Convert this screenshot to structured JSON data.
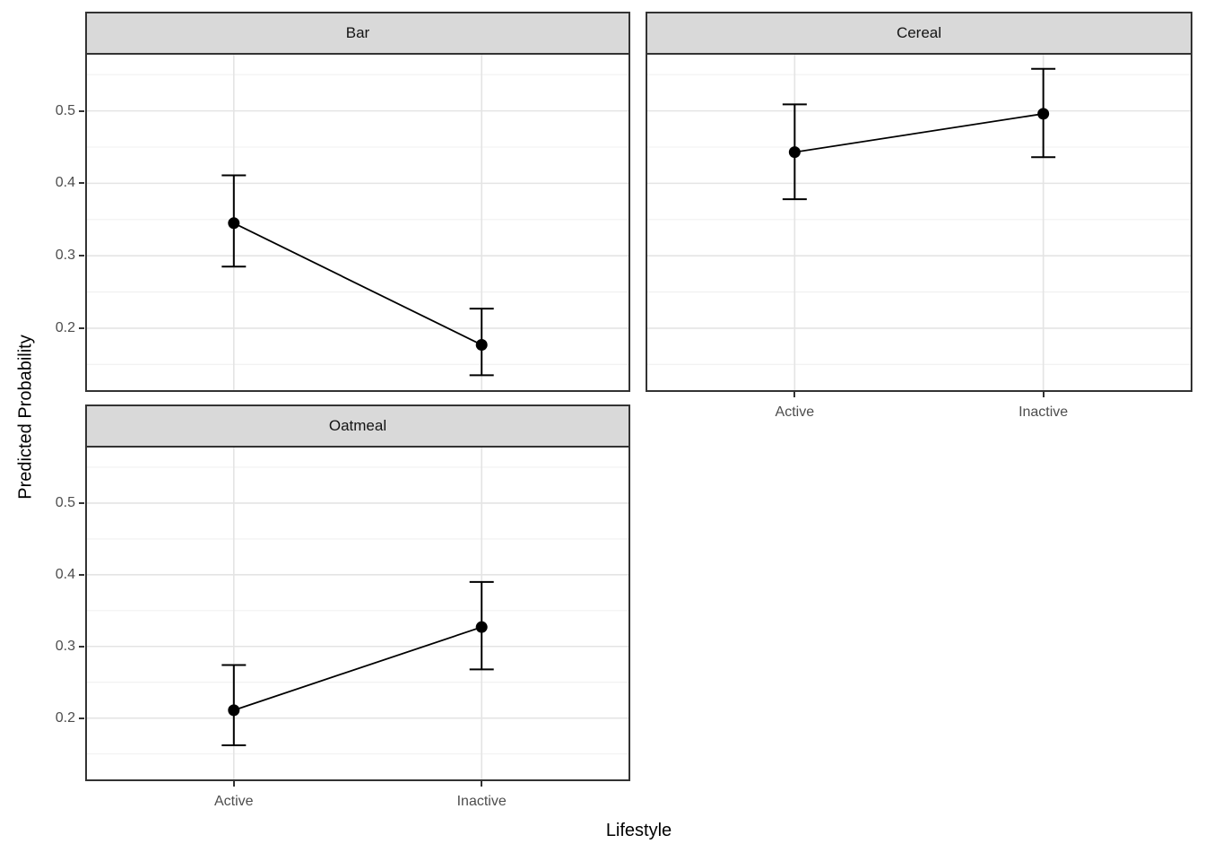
{
  "axes": {
    "x_title": "Lifestyle",
    "y_title": "Predicted Probability"
  },
  "colors": {
    "background": "#ffffff",
    "strip_fill": "#d9d9d9",
    "panel_border": "#333333",
    "grid_major": "#e4e4e4",
    "grid_minor": "#f0f0f0",
    "data": "#000000",
    "axis_text": "#4d4d4d",
    "tick_mark": "#333333"
  },
  "chart_data": {
    "type": "line",
    "subtype": "point-range interaction plot, faceted",
    "title": "",
    "xlabel": "Lifestyle",
    "ylabel": "Predicted Probability",
    "categories": [
      "Active",
      "Inactive"
    ],
    "facets": [
      {
        "label": "Bar",
        "values": [
          0.345,
          0.177
        ],
        "ci_low": [
          0.285,
          0.135
        ],
        "ci_high": [
          0.411,
          0.227
        ]
      },
      {
        "label": "Cereal",
        "values": [
          0.443,
          0.496
        ],
        "ci_low": [
          0.378,
          0.436
        ],
        "ci_high": [
          0.509,
          0.558
        ]
      },
      {
        "label": "Oatmeal",
        "values": [
          0.211,
          0.327
        ],
        "ci_low": [
          0.162,
          0.268
        ],
        "ci_high": [
          0.274,
          0.39
        ]
      }
    ],
    "y_ticks": [
      0.2,
      0.3,
      0.4,
      0.5
    ],
    "y_tick_labels": [
      "0.2",
      "0.3",
      "0.4",
      "0.5"
    ],
    "y_minor_ticks": [
      0.15,
      0.25,
      0.35,
      0.45,
      0.55
    ],
    "ylim": [
      0.112,
      0.58
    ],
    "grid": "major and minor horizontal, major vertical at categories",
    "legend": false
  }
}
